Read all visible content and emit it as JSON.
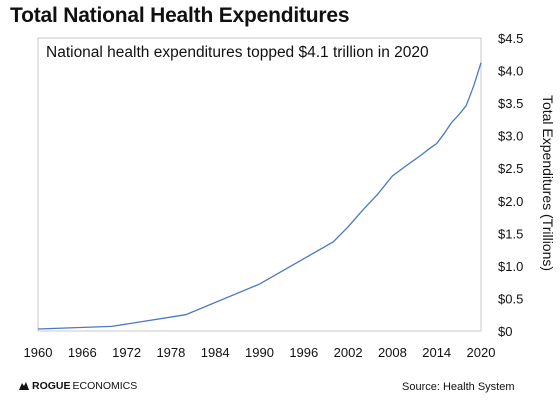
{
  "header": {
    "title": "Total National Health Expenditures"
  },
  "annotation": "National health expenditures topped $4.1 trillion in 2020",
  "footer": {
    "logo_bold": "ROGUE",
    "logo_rest": " ECONOMICS",
    "source": "Source: Health System"
  },
  "colors": {
    "line": "#4a78c2",
    "frame": "#c8c8c8"
  },
  "chart_data": {
    "type": "line",
    "title": "Total National Health Expenditures",
    "ylabel": "Total Expenditures (Trillions)",
    "xlabel": "",
    "xlim": [
      1960,
      2020
    ],
    "ylim": [
      0,
      4.5
    ],
    "y_axis_side": "right",
    "grid": false,
    "x_ticks": [
      1960,
      1966,
      1972,
      1978,
      1984,
      1990,
      1996,
      2002,
      2008,
      2014,
      2020
    ],
    "y_ticks": [
      {
        "value": 0,
        "label": "$0"
      },
      {
        "value": 0.5,
        "label": "$0.5"
      },
      {
        "value": 1.0,
        "label": "$1.0"
      },
      {
        "value": 1.5,
        "label": "$1.5"
      },
      {
        "value": 2.0,
        "label": "$2.0"
      },
      {
        "value": 2.5,
        "label": "$2.5"
      },
      {
        "value": 3.0,
        "label": "$3.0"
      },
      {
        "value": 3.5,
        "label": "$3.5"
      },
      {
        "value": 4.0,
        "label": "$4.0"
      },
      {
        "value": 4.5,
        "label": "$4.5"
      }
    ],
    "series": [
      {
        "x": [
          1960,
          1970,
          1980,
          1990,
          2000,
          2002,
          2004,
          2006,
          2008,
          2010,
          2012,
          2013,
          2014,
          2015,
          2016,
          2017,
          2018,
          2019,
          2020
        ],
        "values": [
          0.03,
          0.07,
          0.25,
          0.72,
          1.37,
          1.6,
          1.86,
          2.1,
          2.38,
          2.55,
          2.71,
          2.8,
          2.88,
          3.03,
          3.2,
          3.32,
          3.46,
          3.76,
          4.12
        ]
      }
    ]
  }
}
